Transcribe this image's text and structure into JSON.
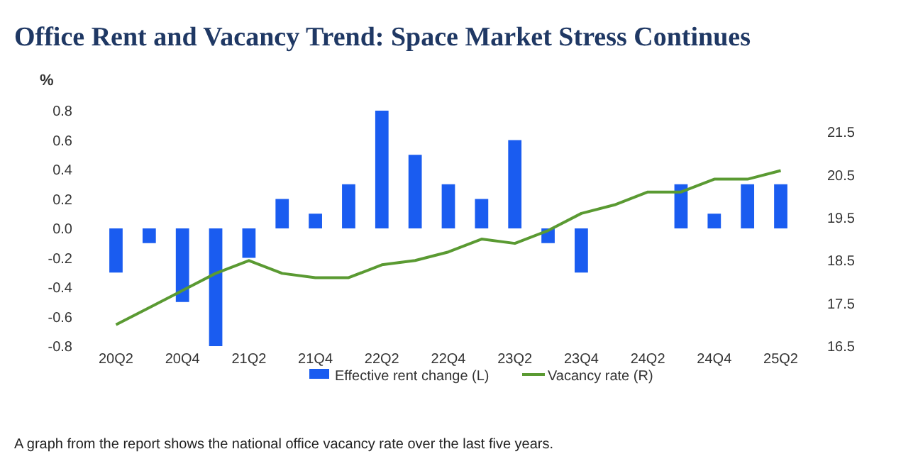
{
  "chart_data": {
    "type": "bar",
    "title": "Office Rent and Vacancy Trend: Space Market Stress Continues",
    "ylabel": "%",
    "categories": [
      "20Q2",
      null,
      "20Q4",
      null,
      "21Q2",
      null,
      "21Q4",
      null,
      "22Q2",
      null,
      "22Q4",
      null,
      "23Q2",
      null,
      "23Q4",
      null,
      "24Q2",
      null,
      "24Q4",
      null,
      "25Q2"
    ],
    "series": [
      {
        "name": "Effective rent change (L)",
        "color": "#1a5cf0",
        "values": [
          -0.3,
          -0.1,
          -0.5,
          -0.8,
          -0.2,
          0.2,
          0.1,
          0.3,
          0.8,
          0.5,
          0.3,
          0.2,
          0.6,
          -0.1,
          -0.3,
          0,
          0,
          0.3,
          0.1,
          0.3,
          0.3
        ]
      },
      {
        "name": "Vacancy rate (R)",
        "type": "line",
        "axis": "y2",
        "color": "#5a9a32",
        "values": [
          17.0,
          17.4,
          17.8,
          18.2,
          18.5,
          18.2,
          18.1,
          18.1,
          18.4,
          18.5,
          18.7,
          19.0,
          18.9,
          19.2,
          19.6,
          19.8,
          20.1,
          20.1,
          20.4,
          20.4,
          20.6
        ]
      }
    ],
    "ylim": [
      -0.8,
      0.8
    ],
    "yticks": [
      -0.8,
      -0.6,
      -0.4,
      -0.2,
      {
        "value": 0,
        "label": "0.0"
      },
      0.2,
      0.4,
      0.6,
      0.8
    ],
    "y2lim": [
      16.5,
      22.0
    ],
    "y2ticks": [
      16.5,
      17.5,
      18.5,
      19.5,
      20.5,
      21.5
    ],
    "legend": "bottom",
    "marker": "none",
    "line_style": "solid",
    "annotations": [
      "A graph from the report shows the national office vacancy rate over the last five years."
    ]
  }
}
